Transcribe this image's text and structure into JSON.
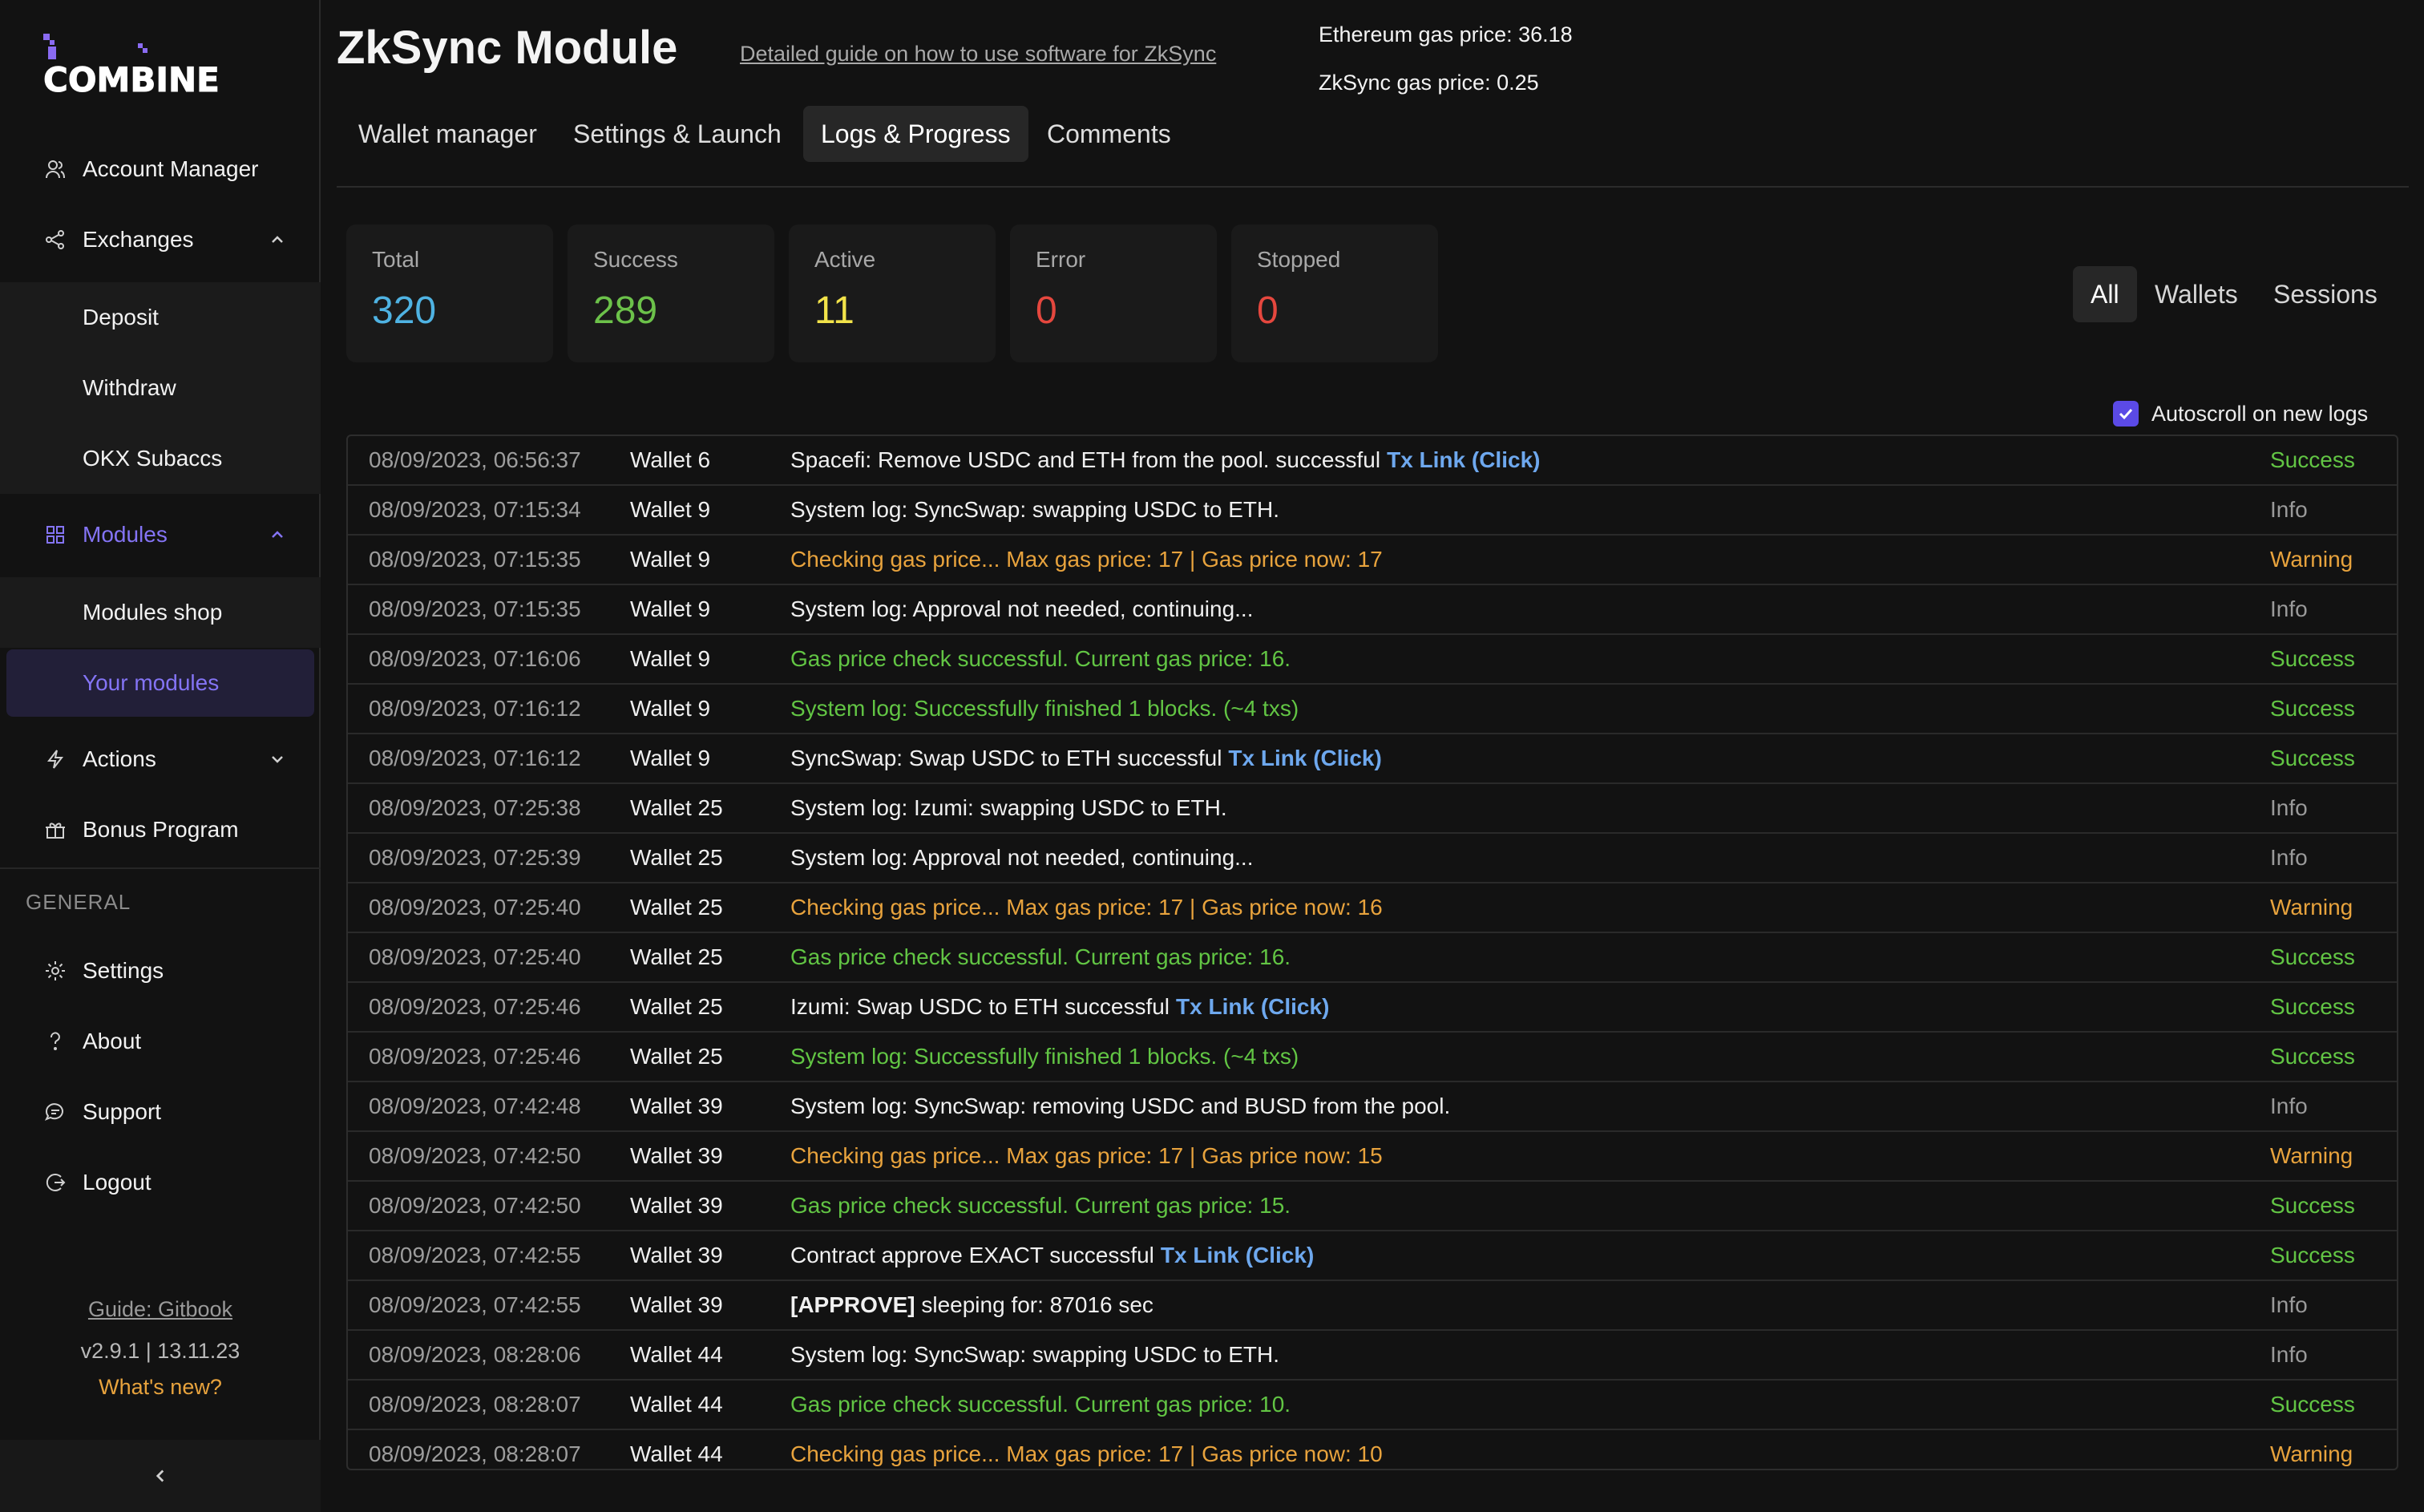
{
  "app": {
    "logo_text": "COMBINE"
  },
  "sidebar": {
    "items": [
      {
        "label": "Account Manager",
        "icon": "users-icon"
      },
      {
        "label": "Exchanges",
        "icon": "share-nodes-icon",
        "expanded": true
      },
      {
        "label": "Deposit"
      },
      {
        "label": "Withdraw"
      },
      {
        "label": "OKX Subaccs"
      },
      {
        "label": "Modules",
        "icon": "grid-icon",
        "expanded": true
      },
      {
        "label": "Modules shop"
      },
      {
        "label": "Your modules",
        "selected": true
      },
      {
        "label": "Actions",
        "icon": "bolt-icon",
        "expanded": false
      },
      {
        "label": "Bonus Program",
        "icon": "gift-icon"
      }
    ],
    "section_general": "GENERAL",
    "general_items": [
      {
        "label": "Settings",
        "icon": "gear-icon"
      },
      {
        "label": "About",
        "icon": "question-icon"
      },
      {
        "label": "Support",
        "icon": "chat-icon"
      },
      {
        "label": "Logout",
        "icon": "logout-icon"
      }
    ],
    "footer": {
      "guide": "Guide: Gitbook",
      "version": "v2.9.1 | 13.11.23",
      "whats_new": "What's new?"
    }
  },
  "header": {
    "title": "ZkSync Module",
    "guide_link": "Detailed guide on how to use software for ZkSync",
    "eth_gas": "Ethereum gas price: 36.18",
    "zk_gas": "ZkSync gas price: 0.25"
  },
  "tabs": [
    {
      "label": "Wallet manager"
    },
    {
      "label": "Settings & Launch"
    },
    {
      "label": "Logs & Progress",
      "active": true
    },
    {
      "label": "Comments"
    }
  ],
  "stats": [
    {
      "label": "Total",
      "value": "320",
      "color": "#4fb3e3"
    },
    {
      "label": "Success",
      "value": "289",
      "color": "#6cc24a"
    },
    {
      "label": "Active",
      "value": "11",
      "color": "#f2e34a"
    },
    {
      "label": "Error",
      "value": "0",
      "color": "#e5473e"
    },
    {
      "label": "Stopped",
      "value": "0",
      "color": "#e5473e"
    }
  ],
  "filters": [
    {
      "label": "All",
      "active": true
    },
    {
      "label": "Wallets"
    },
    {
      "label": "Sessions"
    }
  ],
  "autoscroll": {
    "label": "Autoscroll on new logs",
    "checked": true
  },
  "logs": [
    {
      "time": "08/09/2023, 06:56:37",
      "wallet": "Wallet 6",
      "msg": "Spacefi: Remove USDC and ETH from the pool. successful",
      "link": "Tx Link (Click)",
      "tone": "white",
      "status": "Success"
    },
    {
      "time": "08/09/2023, 07:15:34",
      "wallet": "Wallet 9",
      "msg": "System log: SyncSwap: swapping USDC to ETH.",
      "tone": "white",
      "status": "Info"
    },
    {
      "time": "08/09/2023, 07:15:35",
      "wallet": "Wallet 9",
      "msg": "Checking gas price... Max gas price: 17 | Gas price now: 17",
      "tone": "orange",
      "status": "Warning"
    },
    {
      "time": "08/09/2023, 07:15:35",
      "wallet": "Wallet 9",
      "msg": "System log: Approval not needed, continuing...",
      "tone": "white",
      "status": "Info"
    },
    {
      "time": "08/09/2023, 07:16:06",
      "wallet": "Wallet 9",
      "msg": "Gas price check successful. Current gas price: 16.",
      "tone": "green",
      "status": "Success"
    },
    {
      "time": "08/09/2023, 07:16:12",
      "wallet": "Wallet 9",
      "msg": "System log: Successfully finished 1 blocks. (~4 txs)",
      "tone": "green",
      "status": "Success"
    },
    {
      "time": "08/09/2023, 07:16:12",
      "wallet": "Wallet 9",
      "msg": "SyncSwap: Swap USDC to ETH successful",
      "link": "Tx Link (Click)",
      "tone": "white",
      "status": "Success"
    },
    {
      "time": "08/09/2023, 07:25:38",
      "wallet": "Wallet 25",
      "msg": "System log: Izumi: swapping USDC to ETH.",
      "tone": "white",
      "status": "Info"
    },
    {
      "time": "08/09/2023, 07:25:39",
      "wallet": "Wallet 25",
      "msg": "System log: Approval not needed, continuing...",
      "tone": "white",
      "status": "Info"
    },
    {
      "time": "08/09/2023, 07:25:40",
      "wallet": "Wallet 25",
      "msg": "Checking gas price... Max gas price: 17 | Gas price now: 16",
      "tone": "orange",
      "status": "Warning"
    },
    {
      "time": "08/09/2023, 07:25:40",
      "wallet": "Wallet 25",
      "msg": "Gas price check successful. Current gas price: 16.",
      "tone": "green",
      "status": "Success"
    },
    {
      "time": "08/09/2023, 07:25:46",
      "wallet": "Wallet 25",
      "msg": "Izumi: Swap USDC to ETH successful",
      "link": "Tx Link (Click)",
      "tone": "white",
      "status": "Success"
    },
    {
      "time": "08/09/2023, 07:25:46",
      "wallet": "Wallet 25",
      "msg": "System log: Successfully finished 1 blocks. (~4 txs)",
      "tone": "green",
      "status": "Success"
    },
    {
      "time": "08/09/2023, 07:42:48",
      "wallet": "Wallet 39",
      "msg": "System log: SyncSwap: removing USDC and BUSD from the pool.",
      "tone": "white",
      "status": "Info"
    },
    {
      "time": "08/09/2023, 07:42:50",
      "wallet": "Wallet 39",
      "msg": "Checking gas price... Max gas price: 17 | Gas price now: 15",
      "tone": "orange",
      "status": "Warning"
    },
    {
      "time": "08/09/2023, 07:42:50",
      "wallet": "Wallet 39",
      "msg": "Gas price check successful. Current gas price: 15.",
      "tone": "green",
      "status": "Success"
    },
    {
      "time": "08/09/2023, 07:42:55",
      "wallet": "Wallet 39",
      "msg": "Contract approve EXACT successful",
      "link": "Tx Link (Click)",
      "tone": "white",
      "status": "Success"
    },
    {
      "time": "08/09/2023, 07:42:55",
      "wallet": "Wallet 39",
      "prefix": "[APPROVE]",
      "msg": "sleeping for: 87016 sec",
      "tone": "white",
      "status": "Info"
    },
    {
      "time": "08/09/2023, 08:28:06",
      "wallet": "Wallet 44",
      "msg": "System log: SyncSwap: swapping USDC to ETH.",
      "tone": "white",
      "status": "Info"
    },
    {
      "time": "08/09/2023, 08:28:07",
      "wallet": "Wallet 44",
      "msg": "Gas price check successful. Current gas price: 10.",
      "tone": "green",
      "status": "Success"
    },
    {
      "time": "08/09/2023, 08:28:07",
      "wallet": "Wallet 44",
      "msg": "Checking gas price... Max gas price: 17 | Gas price now: 10",
      "tone": "orange",
      "status": "Warning"
    }
  ]
}
